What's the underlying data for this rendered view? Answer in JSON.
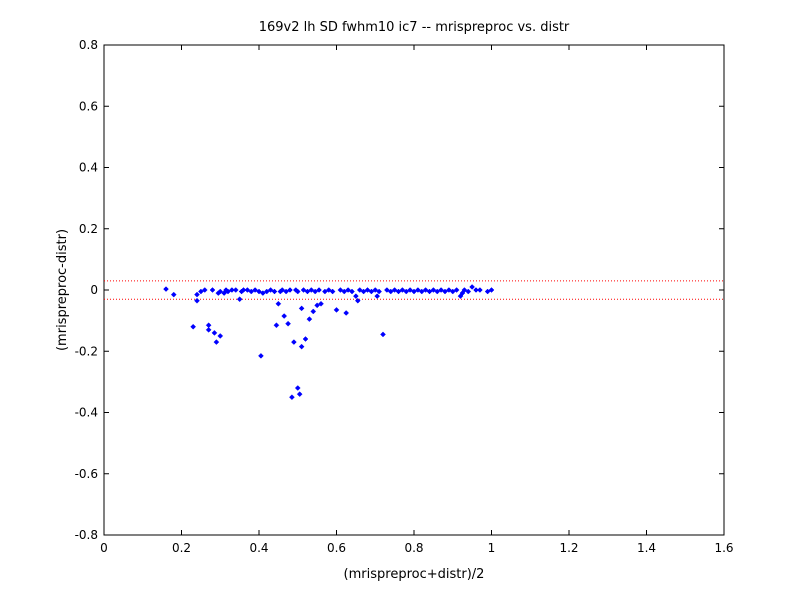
{
  "chart_data": {
    "type": "scatter",
    "title": "169v2 lh SD fwhm10 ic7 -- mrispreproc vs. distr",
    "xlabel": "(mrispreproc+distr)/2",
    "ylabel": "(mrispreproc-distr)",
    "xlim": [
      0,
      1.6
    ],
    "ylim": [
      -0.8,
      0.8
    ],
    "xticks": [
      0,
      0.2,
      0.4,
      0.6,
      0.8,
      1,
      1.2,
      1.4,
      1.6
    ],
    "xtick_labels": [
      "0",
      "0.2",
      "0.4",
      "0.6",
      "0.8",
      "1",
      "1.2",
      "1.4",
      "1.6"
    ],
    "yticks": [
      -0.8,
      -0.6,
      -0.4,
      -0.2,
      0,
      0.2,
      0.4,
      0.6,
      0.8
    ],
    "ytick_labels": [
      "-0.8",
      "-0.6",
      "-0.4",
      "-0.2",
      "0",
      "0.2",
      "0.4",
      "0.6",
      "0.8"
    ],
    "grid": false,
    "reference_lines": [
      {
        "y": 0.03,
        "color": "#ff0000",
        "style": "dotted"
      },
      {
        "y": -0.03,
        "color": "#ff0000",
        "style": "dotted"
      }
    ],
    "series": [
      {
        "color": "#0000ff",
        "marker": "diamond",
        "points": [
          [
            0.16,
            0.003
          ],
          [
            0.18,
            -0.015
          ],
          [
            0.23,
            -0.12
          ],
          [
            0.24,
            -0.035
          ],
          [
            0.24,
            -0.015
          ],
          [
            0.25,
            -0.005
          ],
          [
            0.26,
            0.0
          ],
          [
            0.27,
            -0.115
          ],
          [
            0.27,
            -0.13
          ],
          [
            0.28,
            0.0
          ],
          [
            0.285,
            -0.14
          ],
          [
            0.29,
            -0.17
          ],
          [
            0.295,
            -0.01
          ],
          [
            0.3,
            -0.15
          ],
          [
            0.3,
            -0.005
          ],
          [
            0.31,
            -0.01
          ],
          [
            0.315,
            0.0
          ],
          [
            0.32,
            -0.005
          ],
          [
            0.33,
            0.0
          ],
          [
            0.34,
            0.0
          ],
          [
            0.35,
            -0.03
          ],
          [
            0.355,
            -0.005
          ],
          [
            0.36,
            0.0
          ],
          [
            0.37,
            0.0
          ],
          [
            0.38,
            -0.005
          ],
          [
            0.39,
            0.0
          ],
          [
            0.4,
            -0.005
          ],
          [
            0.405,
            -0.215
          ],
          [
            0.41,
            -0.01
          ],
          [
            0.42,
            -0.005
          ],
          [
            0.43,
            0.0
          ],
          [
            0.44,
            -0.005
          ],
          [
            0.445,
            -0.115
          ],
          [
            0.45,
            -0.045
          ],
          [
            0.455,
            -0.005
          ],
          [
            0.46,
            0.0
          ],
          [
            0.465,
            -0.085
          ],
          [
            0.47,
            -0.005
          ],
          [
            0.475,
            -0.11
          ],
          [
            0.48,
            0.0
          ],
          [
            0.485,
            -0.35
          ],
          [
            0.49,
            -0.17
          ],
          [
            0.495,
            0.0
          ],
          [
            0.5,
            -0.32
          ],
          [
            0.5,
            -0.005
          ],
          [
            0.505,
            -0.34
          ],
          [
            0.51,
            -0.185
          ],
          [
            0.51,
            -0.06
          ],
          [
            0.515,
            0.0
          ],
          [
            0.52,
            -0.16
          ],
          [
            0.525,
            -0.005
          ],
          [
            0.53,
            -0.095
          ],
          [
            0.535,
            0.0
          ],
          [
            0.54,
            -0.07
          ],
          [
            0.545,
            -0.005
          ],
          [
            0.55,
            -0.05
          ],
          [
            0.555,
            0.0
          ],
          [
            0.56,
            -0.045
          ],
          [
            0.57,
            -0.005
          ],
          [
            0.58,
            0.0
          ],
          [
            0.59,
            -0.005
          ],
          [
            0.6,
            -0.065
          ],
          [
            0.61,
            0.0
          ],
          [
            0.62,
            -0.005
          ],
          [
            0.625,
            -0.075
          ],
          [
            0.63,
            0.0
          ],
          [
            0.64,
            -0.005
          ],
          [
            0.65,
            -0.02
          ],
          [
            0.655,
            -0.035
          ],
          [
            0.66,
            0.0
          ],
          [
            0.67,
            -0.005
          ],
          [
            0.68,
            0.0
          ],
          [
            0.69,
            -0.005
          ],
          [
            0.7,
            0.0
          ],
          [
            0.705,
            -0.02
          ],
          [
            0.71,
            -0.005
          ],
          [
            0.72,
            -0.145
          ],
          [
            0.73,
            0.0
          ],
          [
            0.74,
            -0.005
          ],
          [
            0.75,
            0.0
          ],
          [
            0.76,
            -0.005
          ],
          [
            0.77,
            0.0
          ],
          [
            0.78,
            -0.005
          ],
          [
            0.79,
            0.0
          ],
          [
            0.8,
            -0.005
          ],
          [
            0.81,
            0.0
          ],
          [
            0.82,
            -0.005
          ],
          [
            0.83,
            0.0
          ],
          [
            0.84,
            -0.005
          ],
          [
            0.85,
            0.0
          ],
          [
            0.86,
            -0.005
          ],
          [
            0.87,
            0.0
          ],
          [
            0.88,
            -0.005
          ],
          [
            0.89,
            0.0
          ],
          [
            0.9,
            -0.005
          ],
          [
            0.91,
            0.0
          ],
          [
            0.92,
            -0.02
          ],
          [
            0.925,
            -0.01
          ],
          [
            0.93,
            0.0
          ],
          [
            0.94,
            -0.005
          ],
          [
            0.95,
            0.01
          ],
          [
            0.96,
            0.0
          ],
          [
            0.97,
            0.0
          ],
          [
            0.99,
            -0.005
          ],
          [
            1.0,
            0.0
          ]
        ]
      }
    ]
  }
}
